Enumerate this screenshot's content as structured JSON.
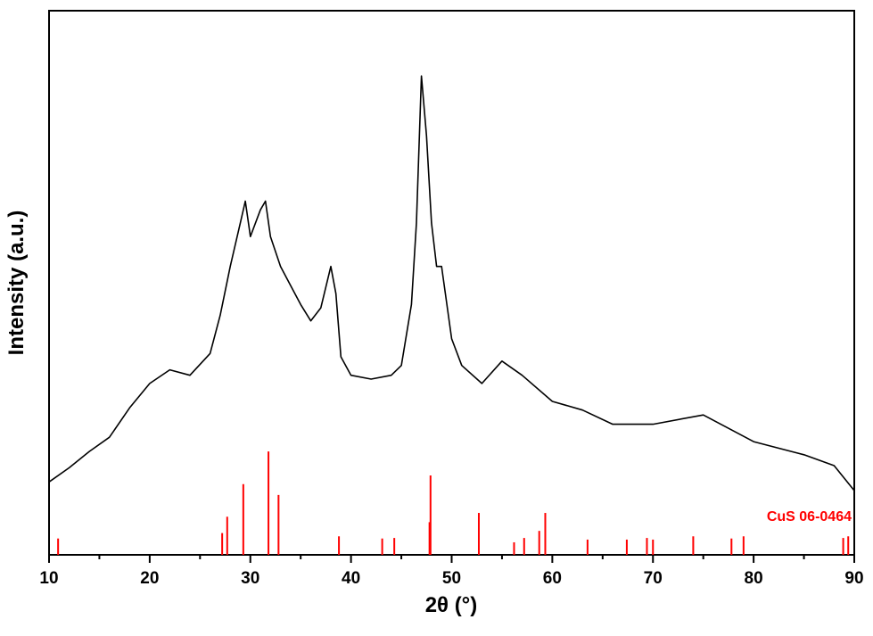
{
  "chart_data": {
    "type": "line",
    "xlabel": "2θ (°)",
    "ylabel": "Intensity (a.u.)",
    "xlim": [
      10,
      90
    ],
    "xticks": [
      10,
      20,
      30,
      40,
      50,
      60,
      70,
      80,
      90
    ],
    "xminorticks": [
      15,
      25,
      35,
      45,
      55,
      65,
      75,
      85
    ],
    "ylim": [
      0,
      100
    ],
    "pattern": {
      "color": "#000000",
      "x": [
        10,
        12,
        14,
        16,
        18,
        20,
        22,
        24,
        26,
        27,
        28,
        29,
        29.5,
        30,
        31,
        31.5,
        32,
        33,
        34,
        35,
        36,
        37,
        38,
        38.5,
        39,
        40,
        42,
        44,
        45,
        46,
        46.5,
        47,
        47.5,
        48,
        48.5,
        49,
        50,
        51,
        53,
        55,
        57,
        60,
        63,
        66,
        70,
        75,
        80,
        85,
        88,
        90
      ],
      "values": [
        13.4,
        16,
        19,
        21.6,
        27,
        31.5,
        34,
        33,
        37,
        44,
        53,
        61,
        65,
        58.5,
        63.4,
        65,
        58.5,
        53,
        49.5,
        46,
        43,
        45.4,
        53,
        48,
        36.4,
        33,
        32.3,
        33,
        34.8,
        46,
        61,
        88,
        77,
        61,
        53,
        53,
        39.7,
        34.8,
        31.5,
        35.6,
        33,
        28.2,
        26.6,
        24,
        24,
        25.7,
        20.8,
        18.4,
        16.4,
        11.8
      ]
    },
    "reference": {
      "name": "CuS 06-0464",
      "color": "#ff0000",
      "x": [
        10.9,
        27.2,
        27.7,
        29.3,
        31.8,
        32.8,
        38.8,
        43.1,
        44.3,
        47.8,
        47.9,
        52.7,
        56.2,
        57.2,
        58.7,
        59.3,
        63.5,
        67.4,
        69.4,
        70,
        74,
        77.8,
        79,
        88.9,
        89.4
      ],
      "values": [
        3,
        4,
        7,
        13,
        19,
        11,
        3.4,
        3,
        3.1,
        6,
        14.6,
        7.7,
        2.3,
        3.1,
        4.4,
        7.7,
        2.8,
        2.8,
        3.1,
        2.8,
        3.4,
        3,
        3.4,
        3.1,
        3.4
      ]
    }
  }
}
